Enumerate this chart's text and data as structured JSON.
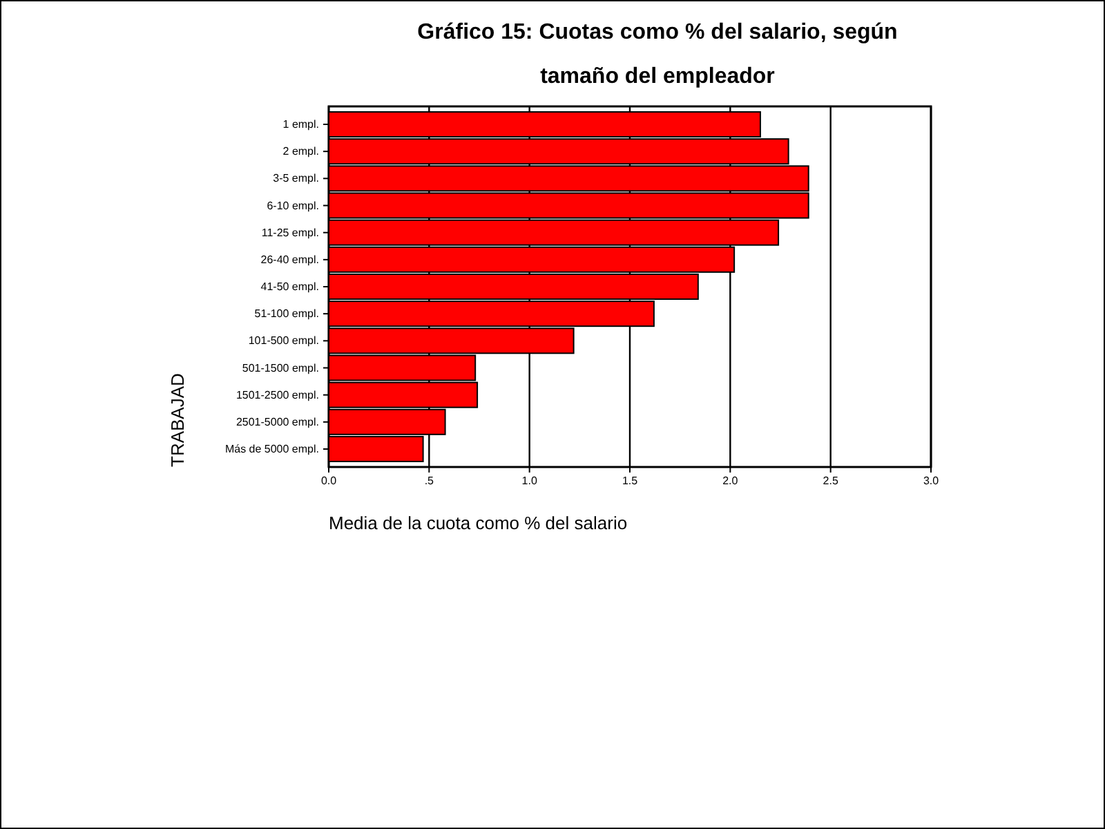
{
  "chart_data": {
    "type": "bar",
    "orientation": "horizontal",
    "title": "Gráfico 15: Cuotas como % del salario, según tamaño del empleador",
    "xlabel": "Media de la cuota como % del salario",
    "ylabel": "TRABAJAD",
    "categories": [
      "1 empl.",
      "2 empl.",
      "3-5 empl.",
      "6-10 empl.",
      "11-25 empl.",
      "26-40 empl.",
      "41-50 empl.",
      "51-100 empl.",
      "101-500 empl.",
      "501-1500 empl.",
      "1501-2500 empl.",
      "2501-5000 empl.",
      "Más de 5000 empl."
    ],
    "values": [
      2.15,
      2.29,
      2.39,
      2.39,
      2.24,
      2.02,
      1.84,
      1.62,
      1.22,
      0.73,
      0.74,
      0.58,
      0.47
    ],
    "color": "#ff0000",
    "xlim": [
      0,
      3
    ],
    "xticks": [
      {
        "value": 0,
        "label": "0.0"
      },
      {
        "value": 0.5,
        "label": ".5"
      },
      {
        "value": 1,
        "label": "1.0"
      },
      {
        "value": 1.5,
        "label": "1.5"
      },
      {
        "value": 2,
        "label": "2.0"
      },
      {
        "value": 2.5,
        "label": "2.5"
      },
      {
        "value": 3,
        "label": "3.0"
      }
    ],
    "grid": "x"
  }
}
